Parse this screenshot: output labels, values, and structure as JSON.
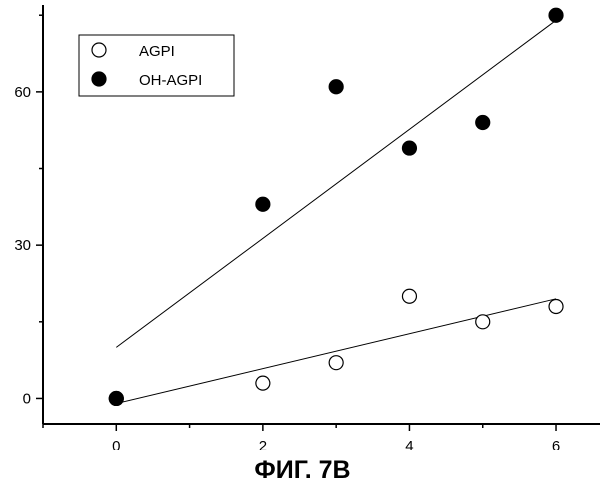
{
  "caption": "ФИГ. 7B",
  "chart_data": {
    "type": "scatter",
    "xlim": [
      -1,
      6.6
    ],
    "ylim": [
      -5,
      77
    ],
    "x_ticks": [
      0,
      2,
      4,
      6
    ],
    "y_ticks": [
      0,
      30,
      60
    ],
    "x_tick_labels": [
      "0",
      "2",
      "4",
      "6"
    ],
    "y_tick_labels": [
      "0",
      "30",
      "60"
    ],
    "grid": false,
    "legend_position": "top-left",
    "series": [
      {
        "name": "AGPI",
        "marker": "open-circle",
        "color": "#000000",
        "points": [
          [
            0,
            0
          ],
          [
            2,
            3
          ],
          [
            3,
            7
          ],
          [
            4,
            20
          ],
          [
            5,
            15
          ],
          [
            6,
            18
          ]
        ],
        "trendline": [
          [
            0,
            -1
          ],
          [
            6,
            19.5
          ]
        ]
      },
      {
        "name": "OH-AGPI",
        "marker": "filled-circle",
        "color": "#000000",
        "points": [
          [
            0,
            0
          ],
          [
            2,
            38
          ],
          [
            3,
            61
          ],
          [
            4,
            49
          ],
          [
            5,
            54
          ],
          [
            6,
            75
          ]
        ],
        "trendline": [
          [
            0,
            10
          ],
          [
            6,
            74
          ]
        ]
      }
    ]
  }
}
